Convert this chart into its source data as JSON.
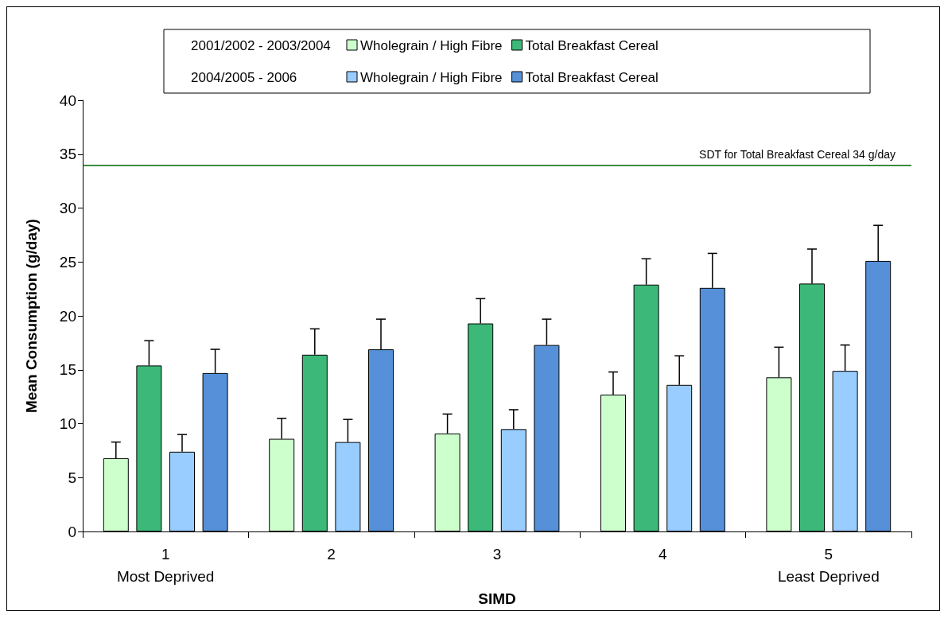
{
  "chart_data": {
    "type": "bar",
    "categories": [
      "1\nMost Deprived",
      "2",
      "3",
      "4",
      "5\nLeast Deprived"
    ],
    "xlabel": "SIMD",
    "ylabel": "Mean Consumption (g/day)",
    "ylim": [
      0,
      40
    ],
    "yticks": [
      0,
      5,
      10,
      15,
      20,
      25,
      30,
      35,
      40
    ],
    "grid": false,
    "legend": "top",
    "annotations": [
      "2001/2002 - 2003/2004",
      "2004/2005 - 2006"
    ],
    "series": [
      {
        "name": "Wholegrain / High Fibre",
        "color": "#ccffcc",
        "values": [
          6.8,
          8.6,
          9.1,
          12.7,
          14.3
        ],
        "errors": [
          [
            6.8,
            8.3
          ],
          [
            8.6,
            10.5
          ],
          [
            9.1,
            10.9
          ],
          [
            12.7,
            14.8
          ],
          [
            14.3,
            17.1
          ]
        ]
      },
      {
        "name": "Total Breakfast Cereal",
        "color": "#3cb878",
        "values": [
          15.4,
          16.4,
          19.3,
          22.9,
          23.0
        ],
        "errors": [
          [
            15.4,
            17.7
          ],
          [
            16.4,
            18.8
          ],
          [
            19.3,
            21.6
          ],
          [
            22.9,
            25.3
          ],
          [
            23.0,
            26.2
          ]
        ]
      },
      {
        "name": "Wholegrain / High Fibre",
        "color": "#99ccff",
        "values": [
          7.4,
          8.3,
          9.5,
          13.6,
          14.9
        ],
        "errors": [
          [
            7.4,
            9.0
          ],
          [
            8.3,
            10.4
          ],
          [
            9.5,
            11.3
          ],
          [
            13.6,
            16.3
          ],
          [
            14.9,
            17.3
          ]
        ]
      },
      {
        "name": "Total Breakfast Cereal",
        "color": "#5590d8",
        "values": [
          14.7,
          16.9,
          17.3,
          22.6,
          25.1
        ],
        "errors": [
          [
            14.7,
            16.9
          ],
          [
            16.9,
            19.7
          ],
          [
            17.3,
            19.7
          ],
          [
            22.6,
            25.8
          ],
          [
            25.1,
            28.4
          ]
        ]
      }
    ],
    "ref_lines": [
      {
        "axis": "y",
        "value": 34,
        "label": "SDT for Total Breakfast Cereal 34 g/day",
        "color": "#006600"
      }
    ]
  }
}
